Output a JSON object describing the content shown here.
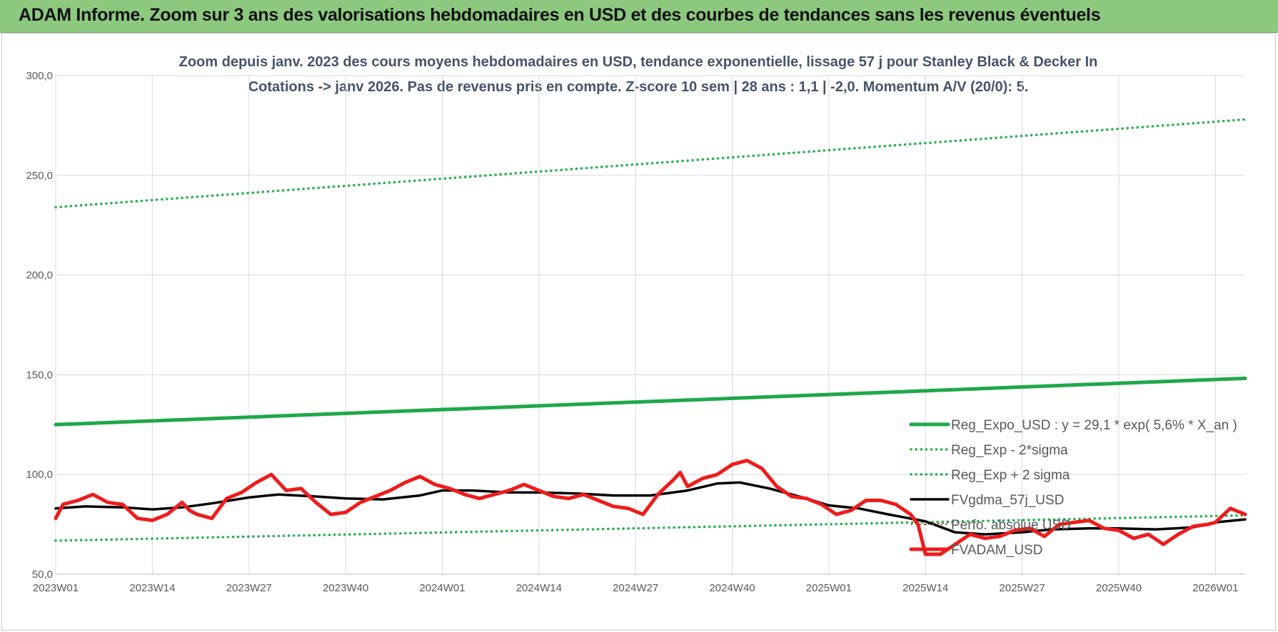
{
  "banner": {
    "title": "ADAM Informe. Zoom sur 3 ans des valorisations hebdomadaires en USD et des courbes de tendances sans les revenus éventuels"
  },
  "colors": {
    "banner_bg": "#8cc97f",
    "trend": "#1fa84a",
    "band": "#22b14c",
    "fv": "#000000",
    "adam": "#ee1c1c",
    "perf": "#8b5a2b"
  },
  "chart_data": {
    "type": "line",
    "title_lines": [
      "Zoom depuis janv. 2023 des cours moyens hebdomadaires en USD, tendance exponentielle, lissage 57 j pour Stanley Black & Decker In",
      "Cotations -> janv 2026. Pas de revenus pris en compte. Z-score 10 sem | 28 ans : 1,1 | -2,0. Momentum A/V (20/0): 5."
    ],
    "x_tick_labels": [
      "2023W01",
      "2023W14",
      "2023W27",
      "2023W40",
      "2024W01",
      "2024W14",
      "2024W27",
      "2024W40",
      "2025W01",
      "2025W14",
      "2025W27",
      "2025W40",
      "2026W01"
    ],
    "x_range": [
      "2023W01",
      "2026W05"
    ],
    "y_tick_labels": [
      "300,0",
      "250,0",
      "200,0",
      "150,0",
      "100,0",
      "50,0"
    ],
    "ylim": [
      50,
      300
    ],
    "grid": true,
    "legend_position": "bottom-right",
    "series": [
      {
        "name": "Reg_Expo_USD : y = 29,1 * exp( 5,6% *  X_an )",
        "style": "solid-thick",
        "color": "#1fa84a",
        "x": [
          "2023W01",
          "2026W05"
        ],
        "y": [
          125.0,
          148.2
        ]
      },
      {
        "name": "Reg_Exp - 2*sigma",
        "style": "dotted",
        "color": "#22b14c",
        "x": [
          "2023W01",
          "2026W05"
        ],
        "y": [
          66.8,
          79.5
        ]
      },
      {
        "name": "Reg_Exp + 2 sigma",
        "style": "dotted",
        "color": "#22b14c",
        "x": [
          "2023W01",
          "2026W05"
        ],
        "y": [
          234.0,
          278.0
        ]
      },
      {
        "name": "FVgdma_57j_USD",
        "style": "solid",
        "color": "#000000",
        "x": [
          "2023W01",
          "2023W05",
          "2023W10",
          "2023W14",
          "2023W18",
          "2023W22",
          "2023W27",
          "2023W31",
          "2023W36",
          "2023W40",
          "2023W45",
          "2023W50",
          "2024W01",
          "2024W05",
          "2024W10",
          "2024W14",
          "2024W19",
          "2024W24",
          "2024W29",
          "2024W34",
          "2024W38",
          "2024W41",
          "2024W45",
          "2024W50",
          "2025W01",
          "2025W05",
          "2025W09",
          "2025W14",
          "2025W18",
          "2025W22",
          "2025W27",
          "2025W31",
          "2025W36",
          "2025W40",
          "2025W45",
          "2025W50",
          "2026W01",
          "2026W05"
        ],
        "y": [
          83.0,
          84.0,
          83.5,
          82.5,
          83.5,
          85.5,
          88.5,
          90.0,
          89.0,
          88.0,
          87.5,
          89.5,
          92.0,
          92.0,
          91.0,
          91.0,
          90.5,
          89.5,
          89.5,
          92.0,
          95.5,
          96.0,
          93.0,
          88.0,
          84.5,
          83.0,
          80.0,
          76.5,
          71.0,
          70.0,
          71.0,
          72.5,
          73.0,
          73.0,
          72.5,
          73.5,
          76.0,
          77.5
        ]
      },
      {
        "name": "Perfo. absolue USD",
        "style": "dotted-thin",
        "color": "#8b5a2b",
        "x": [
          "2025W14",
          "2025W18"
        ],
        "y": [
          75.0,
          76.0
        ]
      },
      {
        "name": "FVADAM_USD",
        "style": "solid-thick",
        "color": "#ee1c1c",
        "x": [
          "2023W01",
          "2023W02",
          "2023W04",
          "2023W06",
          "2023W08",
          "2023W10",
          "2023W12",
          "2023W14",
          "2023W16",
          "2023W18",
          "2023W19",
          "2023W20",
          "2023W22",
          "2023W24",
          "2023W26",
          "2023W28",
          "2023W30",
          "2023W32",
          "2023W34",
          "2023W36",
          "2023W38",
          "2023W40",
          "2023W42",
          "2023W44",
          "2023W46",
          "2023W48",
          "2023W50",
          "2023W52",
          "2024W02",
          "2024W04",
          "2024W06",
          "2024W08",
          "2024W10",
          "2024W12",
          "2024W14",
          "2024W16",
          "2024W18",
          "2024W20",
          "2024W22",
          "2024W24",
          "2024W26",
          "2024W28",
          "2024W30",
          "2024W32",
          "2024W33",
          "2024W34",
          "2024W36",
          "2024W38",
          "2024W40",
          "2024W42",
          "2024W44",
          "2024W46",
          "2024W48",
          "2024W50",
          "2024W52",
          "2025W02",
          "2025W04",
          "2025W06",
          "2025W08",
          "2025W10",
          "2025W12",
          "2025W13",
          "2025W14",
          "2025W16",
          "2025W18",
          "2025W20",
          "2025W22",
          "2025W24",
          "2025W26",
          "2025W28",
          "2025W30",
          "2025W32",
          "2025W34",
          "2025W36",
          "2025W38",
          "2025W40",
          "2025W42",
          "2025W44",
          "2025W46",
          "2025W48",
          "2025W50",
          "2025W52",
          "2026W01",
          "2026W03",
          "2026W05"
        ],
        "y": [
          78.0,
          85.0,
          87.0,
          90.0,
          86.0,
          85.0,
          78.0,
          77.0,
          80.0,
          86.0,
          82.0,
          80.0,
          78.0,
          88.0,
          91.0,
          96.0,
          100.0,
          92.0,
          93.0,
          86.0,
          80.0,
          81.0,
          86.0,
          89.0,
          92.0,
          96.0,
          99.0,
          95.0,
          93.0,
          90.0,
          88.0,
          90.0,
          92.0,
          95.0,
          92.0,
          89.0,
          88.0,
          90.0,
          87.0,
          84.0,
          83.0,
          80.0,
          90.0,
          97.0,
          101.0,
          94.0,
          98.0,
          100.0,
          105.0,
          107.0,
          103.0,
          94.0,
          89.0,
          88.0,
          85.0,
          80.0,
          82.0,
          87.0,
          87.0,
          85.0,
          80.0,
          75.0,
          60.0,
          60.0,
          65.0,
          70.0,
          68.0,
          69.0,
          72.0,
          73.0,
          69.0,
          75.0,
          76.0,
          77.0,
          73.0,
          72.0,
          68.0,
          70.0,
          65.0,
          70.0,
          74.0,
          75.0,
          76.0,
          83.0,
          80.0
        ]
      }
    ]
  }
}
